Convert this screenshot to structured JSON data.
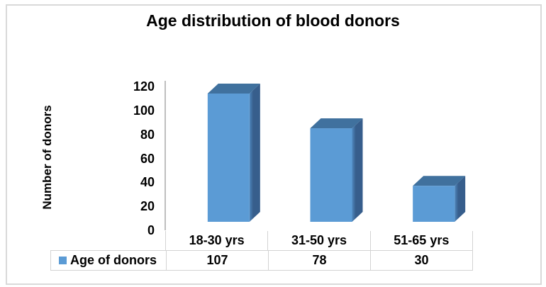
{
  "frame": {
    "border_color": "#D9D9D9"
  },
  "chart_data": {
    "type": "bar",
    "style": "3d-column",
    "title": "Age distribution of blood donors",
    "xlabel": "",
    "ylabel": "Number of donors",
    "categories": [
      "18-30 yrs",
      "31-50 yrs",
      "51-65 yrs"
    ],
    "series": [
      {
        "name": "Age of donors",
        "values": [
          107,
          78,
          30
        ]
      }
    ],
    "ylim": [
      0,
      120
    ],
    "yticks": [
      0,
      20,
      40,
      60,
      80,
      100,
      120
    ],
    "grid": false,
    "legend_position": "bottom-left",
    "data_table_shown": true,
    "colors": {
      "bar_front": "#5B9BD5",
      "bar_top": "#40719E",
      "bar_side_light": "#4E86BC",
      "bar_side_dark": "#375E8C",
      "legend_swatch": "#5B9BD5",
      "axis_line": "#BFBFBF",
      "table_border": "#D3D3D3",
      "text": "#000000",
      "background": "#FFFFFF"
    }
  }
}
